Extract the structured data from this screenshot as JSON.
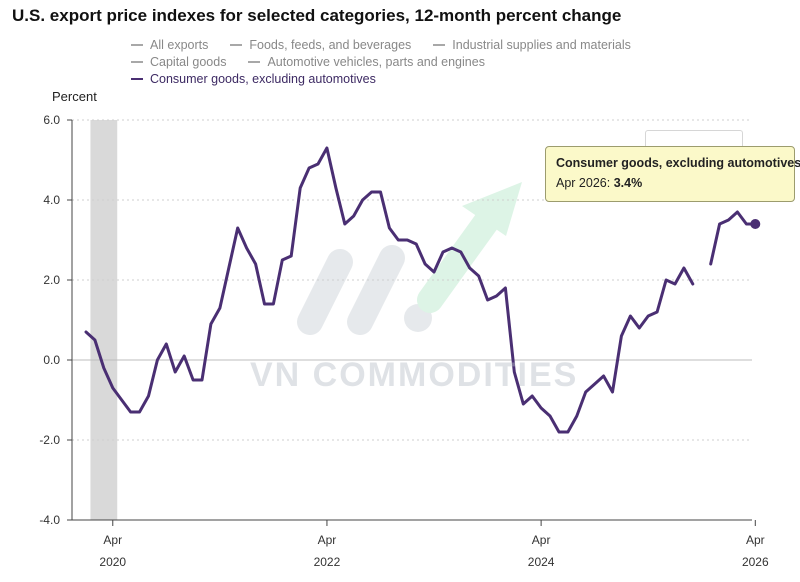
{
  "title": "U.S. export price indexes for selected categories, 12-month percent change",
  "legend": [
    {
      "label": "All exports",
      "active": false
    },
    {
      "label": "Foods, feeds, and beverages",
      "active": false
    },
    {
      "label": "Industrial supplies and materials",
      "active": false
    },
    {
      "label": "Capital goods",
      "active": false
    },
    {
      "label": "Automotive vehicles, parts and engines",
      "active": false
    },
    {
      "label": "Consumer goods, excluding automotives",
      "active": true
    }
  ],
  "watermark": "VN COMMODITIES",
  "tooltip": {
    "title": "Consumer goods, excluding automotives",
    "label": "Apr 2026",
    "value": "3.4%"
  },
  "colors": {
    "series": "#4a2f73",
    "grid": "#cfcfcf",
    "recession": "#d9d9d9",
    "tooltip_bg": "#fbf9c9"
  },
  "chart_data": {
    "type": "line",
    "title": "U.S. export price indexes for selected categories, 12-month percent change",
    "ylabel": "Percent",
    "ylim": [
      -4,
      6
    ],
    "yticks": [
      "-4.0",
      "-2.0",
      "0.0",
      "2.0",
      "4.0",
      "6.0"
    ],
    "xlim": [
      "2020-01",
      "2026-04"
    ],
    "xticks": [
      {
        "month": "Apr",
        "year": "2020",
        "date": "2020-04"
      },
      {
        "month": "Apr",
        "year": "2022",
        "date": "2022-04"
      },
      {
        "month": "Apr",
        "year": "2024",
        "date": "2024-04"
      },
      {
        "month": "Apr",
        "year": "2026",
        "date": "2026-04"
      }
    ],
    "recession": {
      "start": "2020-02",
      "end": "2020-04"
    },
    "grid": true,
    "series": [
      {
        "name": "Consumer goods, excluding automotives",
        "x": [
          "2020-01",
          "2020-02",
          "2020-03",
          "2020-04",
          "2020-05",
          "2020-06",
          "2020-07",
          "2020-08",
          "2020-09",
          "2020-10",
          "2020-11",
          "2020-12",
          "2021-01",
          "2021-02",
          "2021-03",
          "2021-04",
          "2021-05",
          "2021-06",
          "2021-07",
          "2021-08",
          "2021-09",
          "2021-10",
          "2021-11",
          "2021-12",
          "2022-01",
          "2022-02",
          "2022-03",
          "2022-04",
          "2022-05",
          "2022-06",
          "2022-07",
          "2022-08",
          "2022-09",
          "2022-10",
          "2022-11",
          "2022-12",
          "2023-01",
          "2023-02",
          "2023-03",
          "2023-04",
          "2023-05",
          "2023-06",
          "2023-07",
          "2023-08",
          "2023-09",
          "2023-10",
          "2023-11",
          "2023-12",
          "2024-01",
          "2024-02",
          "2024-03",
          "2024-04",
          "2024-05",
          "2024-06",
          "2024-07",
          "2024-08",
          "2024-09",
          "2024-10",
          "2024-11",
          "2024-12",
          "2025-01",
          "2025-02",
          "2025-03",
          "2025-04",
          "2025-05",
          "2025-06",
          "2025-07",
          "2025-08",
          "2025-09",
          "2025-10",
          "2025-11",
          "2025-12",
          "2026-01",
          "2026-02",
          "2026-03",
          "2026-04"
        ],
        "values": [
          0.7,
          0.5,
          -0.2,
          -0.7,
          -1.0,
          -1.3,
          -1.3,
          -0.9,
          0.0,
          0.4,
          -0.3,
          0.1,
          -0.5,
          -0.5,
          0.9,
          1.3,
          2.3,
          3.3,
          2.8,
          2.4,
          1.4,
          1.4,
          2.5,
          2.6,
          4.3,
          4.8,
          4.9,
          5.3,
          4.3,
          3.4,
          3.6,
          4.0,
          4.2,
          4.2,
          3.3,
          3.0,
          3.0,
          2.9,
          2.4,
          2.2,
          2.7,
          2.8,
          2.7,
          2.3,
          2.1,
          1.5,
          1.6,
          1.8,
          -0.3,
          -1.1,
          -0.9,
          -1.2,
          -1.4,
          -1.8,
          -1.8,
          -1.4,
          -0.8,
          -0.6,
          -0.4,
          -0.8,
          0.6,
          1.1,
          0.8,
          1.1,
          1.2,
          2.0,
          1.9,
          2.3,
          1.9,
          null,
          2.4,
          3.4,
          3.5,
          3.7,
          3.4,
          3.4
        ],
        "highlight": {
          "x": "2026-04",
          "y": 3.4
        }
      }
    ]
  }
}
